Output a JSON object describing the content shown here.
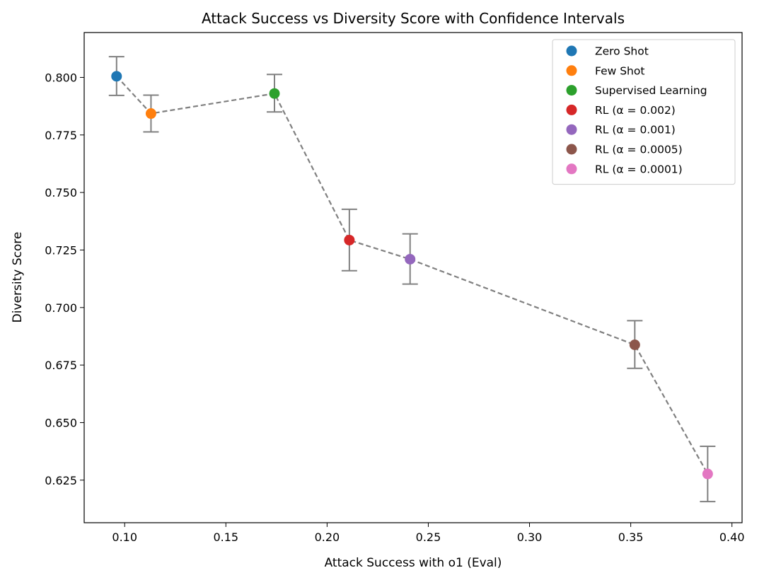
{
  "chart_data": {
    "type": "scatter",
    "title": "Attack Success vs Diversity Score with Confidence Intervals",
    "xlabel": "Attack Success with o1 (Eval)",
    "ylabel": "Diversity Score",
    "xlim": [
      0.08,
      0.405
    ],
    "ylim": [
      0.6065,
      0.8195
    ],
    "x_ticks": [
      0.1,
      0.15,
      0.2,
      0.25,
      0.3,
      0.35,
      0.4
    ],
    "x_tick_labels": [
      "0.10",
      "0.15",
      "0.20",
      "0.25",
      "0.30",
      "0.35",
      "0.40"
    ],
    "y_ticks": [
      0.625,
      0.65,
      0.675,
      0.7,
      0.725,
      0.75,
      0.775,
      0.8
    ],
    "y_tick_labels": [
      "0.625",
      "0.650",
      "0.675",
      "0.700",
      "0.725",
      "0.750",
      "0.775",
      "0.800"
    ],
    "grid": false,
    "legend_position": "top-right",
    "connector_color": "#808080",
    "errorbar_color": "#808080",
    "series": [
      {
        "name": "Zero Shot",
        "x": 0.096,
        "y": 0.8005,
        "ci_low": 0.7922,
        "ci_high": 0.809,
        "color": "#1f77b4"
      },
      {
        "name": "Few Shot",
        "x": 0.113,
        "y": 0.7843,
        "ci_low": 0.7763,
        "ci_high": 0.7923,
        "color": "#ff7f0e"
      },
      {
        "name": "Supervised Learning",
        "x": 0.174,
        "y": 0.793,
        "ci_low": 0.785,
        "ci_high": 0.8013,
        "color": "#2ca02c"
      },
      {
        "name": "RL (α = 0.002)",
        "x": 0.211,
        "y": 0.7293,
        "ci_low": 0.716,
        "ci_high": 0.7427,
        "color": "#d62728"
      },
      {
        "name": "RL (α = 0.001)",
        "x": 0.241,
        "y": 0.721,
        "ci_low": 0.7102,
        "ci_high": 0.732,
        "color": "#9467bd"
      },
      {
        "name": "RL (α = 0.0005)",
        "x": 0.352,
        "y": 0.6838,
        "ci_low": 0.6736,
        "ci_high": 0.6943,
        "color": "#8c564b"
      },
      {
        "name": "RL (α = 0.0001)",
        "x": 0.388,
        "y": 0.6277,
        "ci_low": 0.6157,
        "ci_high": 0.6397,
        "color": "#e377c2"
      }
    ]
  }
}
